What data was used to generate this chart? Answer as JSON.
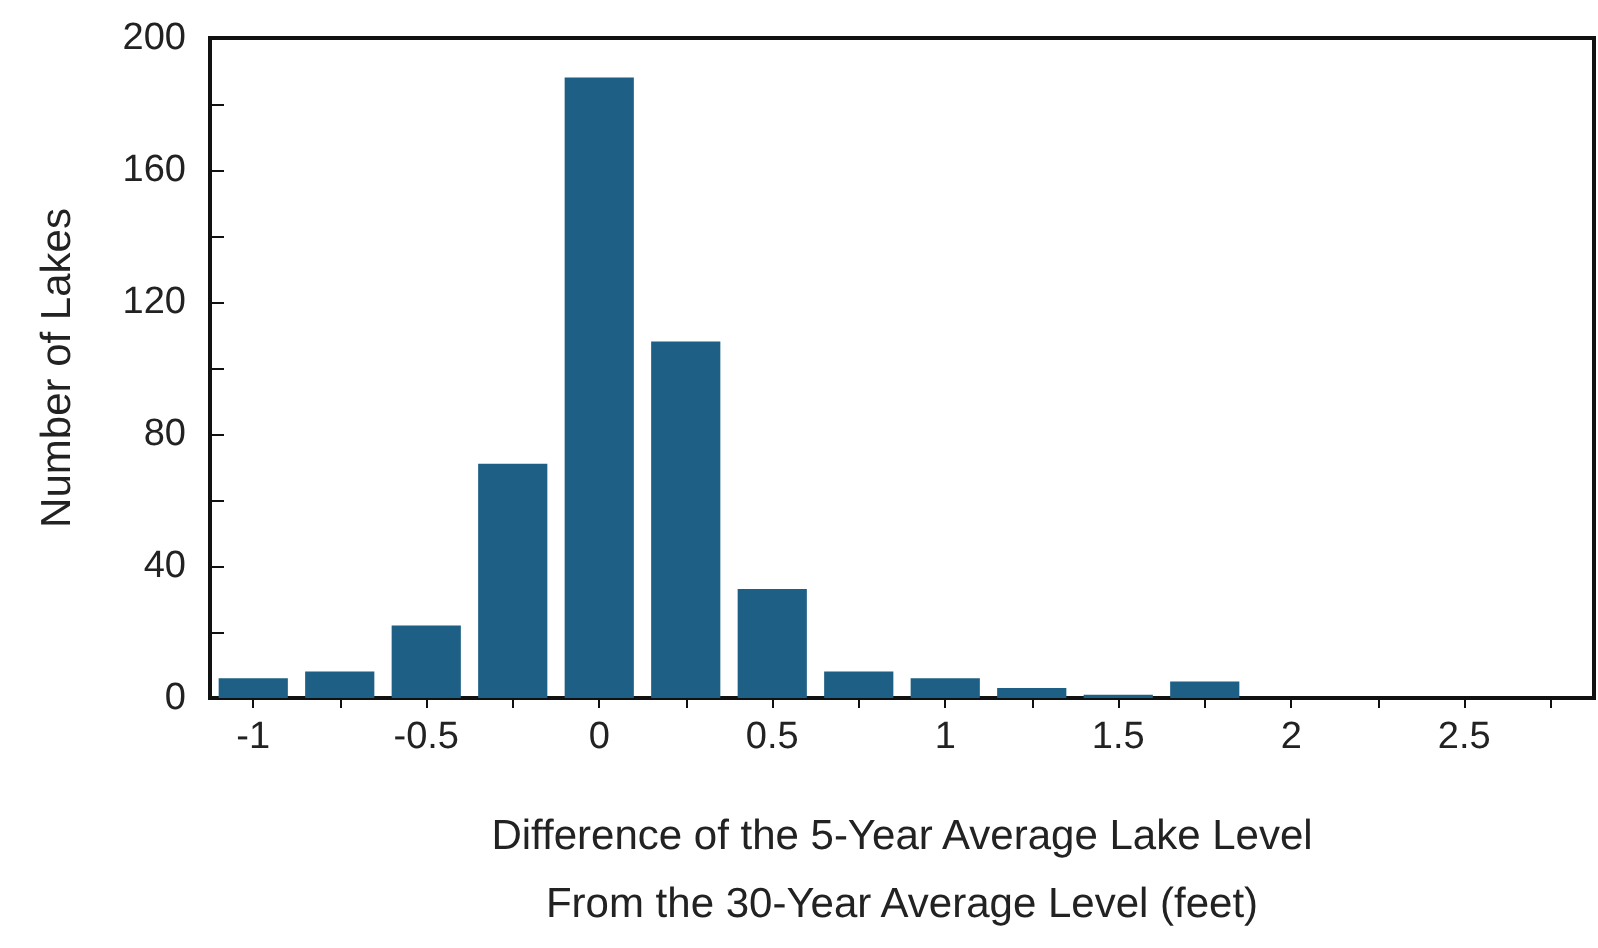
{
  "chart_data": {
    "type": "bar",
    "xlabel": "Difference of the 5-Year Average Lake Level\nFrom the 30-Year Average Level (feet)",
    "ylabel": "Number of Lakes",
    "x": [
      -1,
      -0.75,
      -0.5,
      -0.25,
      0,
      0.25,
      0.5,
      0.75,
      1,
      1.25,
      1.5,
      1.75
    ],
    "values": [
      6,
      8,
      22,
      71,
      188,
      108,
      33,
      8,
      6,
      3,
      1,
      5
    ],
    "color": "#1d5f85",
    "xlim": [
      -1.125,
      2.875
    ],
    "xticks": [
      -1,
      {
        "value": -0.75,
        "label": null
      },
      -0.5,
      {
        "value": -0.25,
        "label": null
      },
      0,
      {
        "value": 0.25,
        "label": null
      },
      0.5,
      {
        "value": 0.75,
        "label": null
      },
      1,
      {
        "value": 1.25,
        "label": null
      },
      1.5,
      {
        "value": 1.75,
        "label": null
      },
      2,
      {
        "value": 2.25,
        "label": null
      },
      2.5,
      {
        "value": 2.75,
        "label": null
      }
    ],
    "ylim": [
      0,
      200
    ],
    "yticks": [
      0,
      {
        "value": 20,
        "label": null
      },
      40,
      {
        "value": 60,
        "label": null
      },
      80,
      {
        "value": 100,
        "label": null
      },
      120,
      {
        "value": 140,
        "label": null
      },
      160,
      {
        "value": 180,
        "label": null
      },
      200
    ],
    "grid": false
  }
}
